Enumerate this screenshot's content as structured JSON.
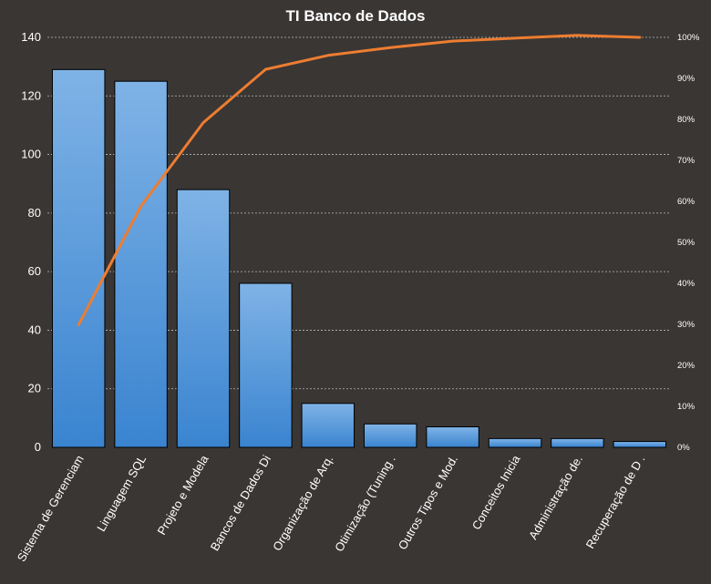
{
  "chart_data": {
    "type": "bar",
    "title": "TI Banco de Dados",
    "categories": [
      "Sistema de Gerenciam",
      "Linguagem SQL",
      "Projeto e Modela",
      "Bancos de Dados Di",
      "Organização de Arq.",
      "Otimização (Tuning .",
      "Outros Tipos e Mod.",
      "Conceitos Inicia",
      "Administração de.",
      "Recuperação de D ."
    ],
    "series": [
      {
        "type": "bar",
        "axis": "left",
        "values": [
          129,
          125,
          88,
          56,
          15,
          8,
          7,
          3,
          3,
          2
        ]
      },
      {
        "type": "line",
        "axis": "right",
        "values": [
          29.9,
          58.8,
          79.2,
          92.2,
          95.6,
          97.5,
          99.1,
          99.8,
          100.5,
          100.0
        ]
      }
    ],
    "y_left": {
      "min": 0,
      "max": 140,
      "ticks": [
        0,
        20,
        40,
        60,
        80,
        100,
        120,
        140
      ]
    },
    "y_right": {
      "min": 0,
      "max": 100,
      "ticks": [
        "0%",
        "10%",
        "20%",
        "30%",
        "40%",
        "50%",
        "60%",
        "70%",
        "80%",
        "90%",
        "100%"
      ]
    },
    "grid": "horizontal dashed",
    "legend": "none",
    "colors": {
      "background": "#393634",
      "bar_fill_top": "#7fb3e6",
      "bar_fill_bottom": "#3a84d0",
      "bar_stroke": "#000000",
      "line": "#ed7d31",
      "text": "#ffffff",
      "grid": "#bdbdbd"
    }
  }
}
